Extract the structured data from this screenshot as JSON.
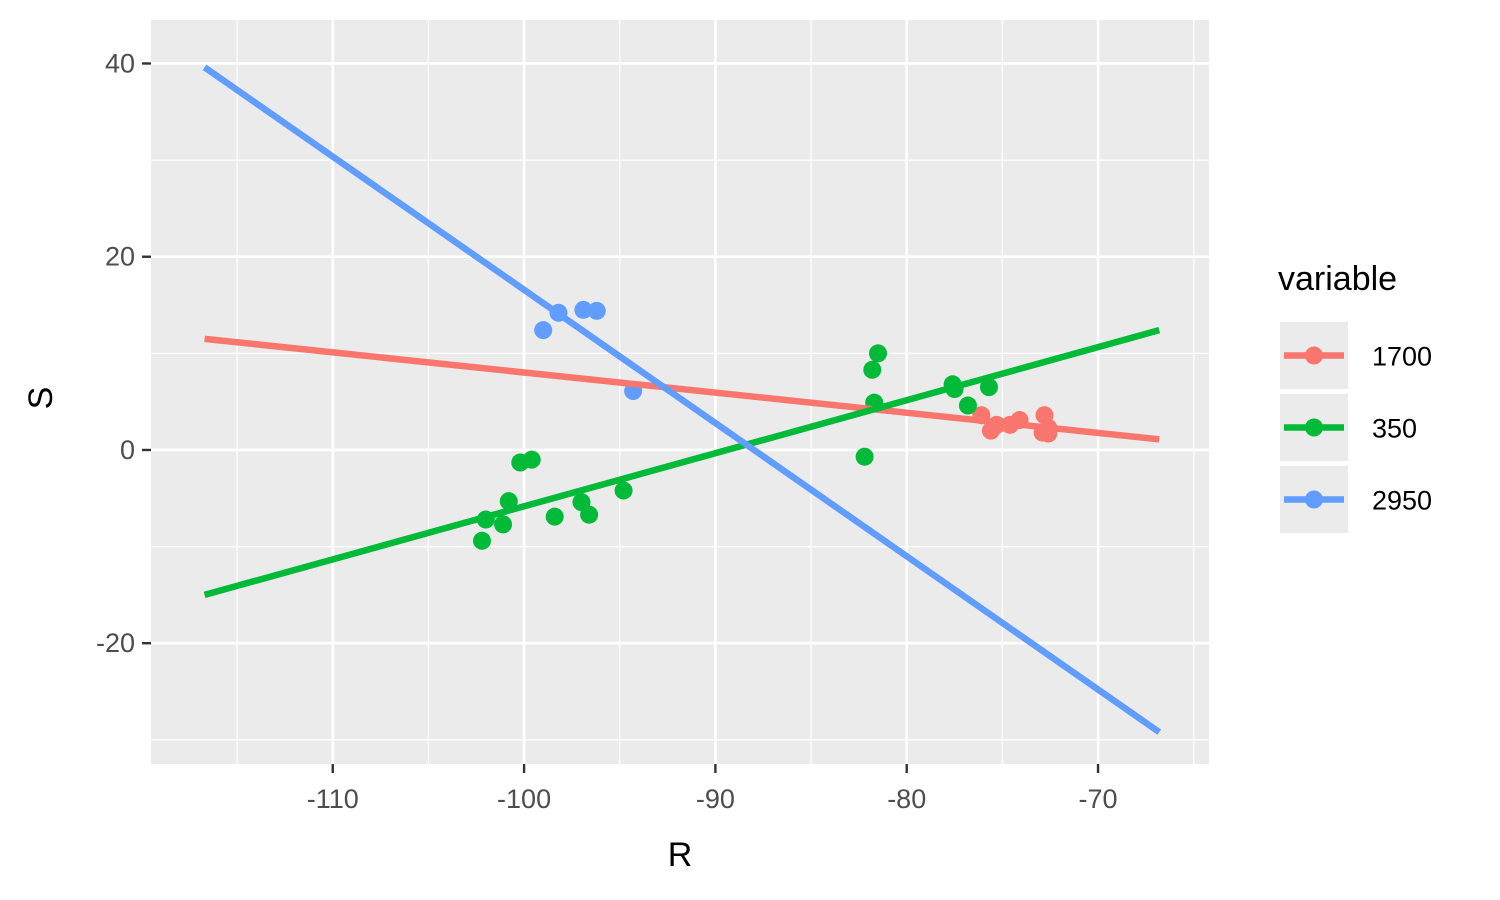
{
  "chart_data": {
    "type": "scatter",
    "title": "",
    "xlabel": "R",
    "ylabel": "S",
    "xlim": [
      -119.5,
      -64.2
    ],
    "ylim": [
      -32.5,
      44.5
    ],
    "x_ticks": [
      -110,
      -100,
      -90,
      -80,
      -70
    ],
    "y_ticks": [
      -20,
      0,
      20,
      40
    ],
    "x_tick_labels": [
      "-110",
      "-100",
      "-90",
      "-80",
      "-70"
    ],
    "y_tick_labels": [
      "-20",
      "0",
      "20",
      "40"
    ],
    "grid": true,
    "panel_background": "#ebebeb",
    "legend": {
      "title": "variable",
      "position": "right",
      "entries": [
        "1700",
        "350",
        "2950"
      ]
    },
    "series": [
      {
        "name": "1700",
        "color": "#f8766d",
        "points": [
          [
            -76.1,
            3.6
          ],
          [
            -75.6,
            2.0
          ],
          [
            -75.3,
            2.6
          ],
          [
            -74.6,
            2.6
          ],
          [
            -74.1,
            3.1
          ],
          [
            -72.8,
            3.6
          ],
          [
            -72.9,
            1.8
          ],
          [
            -72.6,
            1.7
          ],
          [
            -72.6,
            2.3
          ]
        ],
        "fit": [
          [
            -116.7,
            11.5
          ],
          [
            -66.8,
            1.1
          ]
        ]
      },
      {
        "name": "350",
        "color": "#00ba38",
        "points": [
          [
            -102.2,
            -9.4
          ],
          [
            -102.0,
            -7.2
          ],
          [
            -101.1,
            -7.7
          ],
          [
            -100.8,
            -5.3
          ],
          [
            -100.2,
            -1.3
          ],
          [
            -99.6,
            -1.0
          ],
          [
            -98.4,
            -6.9
          ],
          [
            -97.0,
            -5.4
          ],
          [
            -96.6,
            -6.7
          ],
          [
            -94.8,
            -4.2
          ],
          [
            -82.2,
            -0.7
          ],
          [
            -81.8,
            8.3
          ],
          [
            -81.7,
            4.9
          ],
          [
            -81.5,
            10.0
          ],
          [
            -77.6,
            6.8
          ],
          [
            -77.5,
            6.3
          ],
          [
            -76.8,
            4.6
          ],
          [
            -75.7,
            6.5
          ]
        ],
        "fit": [
          [
            -116.7,
            -15.0
          ],
          [
            -66.8,
            12.4
          ]
        ]
      },
      {
        "name": "2950",
        "color": "#619cff",
        "points": [
          [
            -99.0,
            12.4
          ],
          [
            -98.2,
            14.2
          ],
          [
            -96.9,
            14.5
          ],
          [
            -96.2,
            14.4
          ],
          [
            -94.3,
            6.1
          ]
        ],
        "fit": [
          [
            -116.7,
            39.6
          ],
          [
            -66.8,
            -29.2
          ]
        ]
      }
    ]
  }
}
